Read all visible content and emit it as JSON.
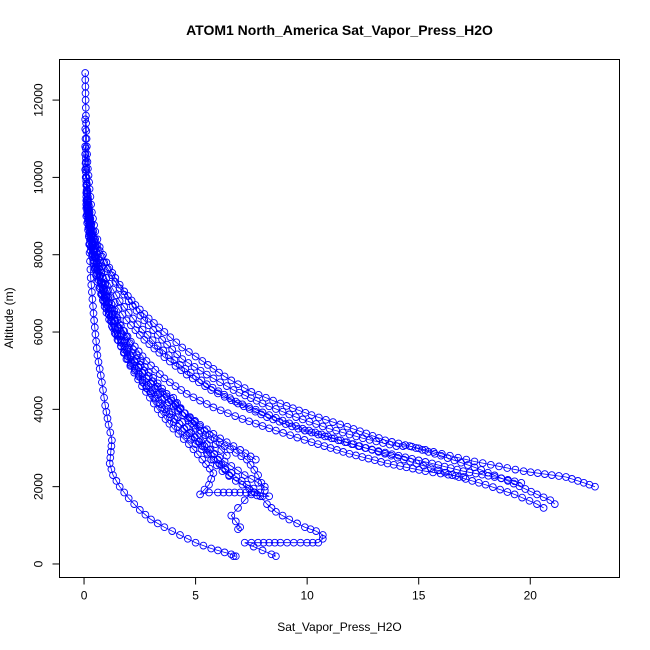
{
  "chart_data": {
    "type": "scatter",
    "title": "ATOM1 North_America Sat_Vapor_Press_H2O",
    "xlabel": "Sat_Vapor_Press_H2O",
    "ylabel": "Altitude (m)",
    "xlim": [
      -1.1,
      24
    ],
    "ylim": [
      -350,
      13050
    ],
    "xticks": [
      0,
      5,
      10,
      15,
      20
    ],
    "yticks": [
      0,
      2000,
      4000,
      6000,
      8000,
      10000,
      12000
    ],
    "color": "#0000ff",
    "marker": "open-circle",
    "connected": true,
    "grid": false,
    "legend": "none",
    "series": [
      {
        "x": [
          0.05,
          0.07,
          0.1,
          0.15,
          0.25,
          0.35,
          0.5,
          0.7,
          1.0,
          1.4,
          1.8,
          2.3,
          2.9,
          3.6,
          4.4,
          5.3,
          6.3,
          7.5,
          8.8,
          10.2,
          11.8,
          13.5,
          15.3,
          17.5,
          19.7,
          21.6,
          22.4,
          22.9
        ],
        "y": [
          12700,
          12000,
          11200,
          10400,
          9700,
          9100,
          8600,
          8200,
          7800,
          7400,
          7050,
          6700,
          6350,
          6000,
          5600,
          5250,
          4850,
          4450,
          4150,
          3850,
          3550,
          3200,
          2950,
          2650,
          2400,
          2250,
          2100,
          2000
        ]
      },
      {
        "x": [
          0.1,
          0.25,
          0.5,
          0.9,
          1.4,
          2.0,
          2.7,
          3.5,
          4.4,
          5.5,
          6.7,
          8.0,
          9.5,
          11.0,
          12.5,
          14.0,
          14.6,
          16.0,
          17.5,
          19.0,
          20.3,
          20.9,
          21.1
        ],
        "y": [
          10000,
          9000,
          8400,
          7800,
          7300,
          6800,
          6300,
          5800,
          5300,
          4900,
          4500,
          4150,
          3800,
          3500,
          3250,
          3050,
          3050,
          2800,
          2500,
          2150,
          1800,
          1650,
          1550
        ]
      },
      {
        "x": [
          0.1,
          0.3,
          0.6,
          1.0,
          1.6,
          2.4,
          3.3,
          4.3,
          5.5,
          6.8,
          8.3,
          9.8,
          11.5,
          13.2,
          14.9,
          16.5,
          18.0,
          19.3,
          20.3,
          20.6
        ],
        "y": [
          9500,
          8700,
          8000,
          7400,
          6800,
          6200,
          5650,
          5150,
          4650,
          4200,
          3850,
          3500,
          3200,
          2900,
          2600,
          2300,
          2050,
          1800,
          1550,
          1450
        ]
      },
      {
        "x": [
          0.1,
          0.3,
          0.6,
          1.0,
          1.5,
          2.1,
          2.8,
          3.5,
          4.2,
          4.8,
          5.3,
          5.7,
          6.2,
          6.8,
          7.4,
          7.9,
          8.2,
          8.6,
          9.2,
          9.9,
          10.4,
          10.7,
          10.7,
          10.5,
          10.0,
          9.4,
          8.8,
          8.3,
          7.8,
          7.2,
          7.6,
          8.0,
          8.4,
          8.6
        ],
        "y": [
          9600,
          8500,
          7600,
          6800,
          6100,
          5400,
          4800,
          4250,
          3800,
          3400,
          3050,
          2700,
          2400,
          2150,
          1950,
          1750,
          1550,
          1350,
          1150,
          950,
          850,
          750,
          650,
          550,
          550,
          550,
          550,
          550,
          550,
          550,
          450,
          350,
          250,
          200
        ]
      },
      {
        "x": [
          0.05,
          0.1,
          0.2,
          0.3,
          0.45,
          0.6,
          0.8,
          0.95,
          1.1,
          1.25,
          1.2,
          1.15,
          1.3,
          1.6,
          2.0,
          2.5,
          3.0,
          3.6,
          4.3,
          5.0,
          5.7,
          6.3,
          6.6,
          6.8,
          6.7
        ],
        "y": [
          11500,
          10000,
          8700,
          7400,
          6300,
          5400,
          4700,
          4100,
          3600,
          3200,
          2900,
          2600,
          2300,
          2000,
          1700,
          1400,
          1150,
          950,
          750,
          550,
          400,
          300,
          250,
          200,
          200
        ]
      },
      {
        "x": [
          0.05,
          0.15,
          0.4,
          0.8,
          1.3,
          1.9,
          2.6,
          3.3,
          4.0,
          4.7,
          5.3,
          5.8,
          5.6,
          5.2,
          5.6,
          6.0,
          6.5,
          7.0,
          7.5,
          7.2,
          6.9,
          6.6,
          6.8,
          7.0,
          6.9
        ],
        "y": [
          10600,
          9200,
          8000,
          7000,
          6100,
          5300,
          4600,
          4000,
          3500,
          3100,
          2700,
          2350,
          2050,
          1800,
          1850,
          1850,
          1850,
          1850,
          1850,
          1650,
          1450,
          1250,
          1100,
          950,
          900
        ]
      },
      {
        "x": [
          0.1,
          0.3,
          0.6,
          1.0,
          1.5,
          2.1,
          2.8,
          3.5,
          4.2,
          5.0,
          5.8,
          6.6,
          7.3,
          7.9,
          8.3,
          8.0,
          7.5
        ],
        "y": [
          9800,
          8600,
          7600,
          6700,
          5900,
          5200,
          4600,
          4050,
          3550,
          3100,
          2700,
          2350,
          2050,
          1850,
          1750,
          1750,
          1800
        ]
      },
      {
        "x": [
          0.1,
          0.3,
          0.7,
          1.2,
          1.9,
          2.7,
          3.6,
          4.6,
          5.7,
          6.9,
          8.2,
          9.6,
          11.1,
          12.6,
          14.1,
          15.6,
          17.0,
          18.4,
          19.6
        ],
        "y": [
          9300,
          8400,
          7600,
          6900,
          6300,
          5800,
          5350,
          4900,
          4500,
          4150,
          3800,
          3500,
          3250,
          3000,
          2800,
          2600,
          2400,
          2250,
          2100
        ]
      },
      {
        "x": [
          0.05,
          0.2,
          0.5,
          0.9,
          1.4,
          2.0,
          2.7,
          3.5,
          4.3,
          5.2,
          6.1,
          7.0,
          7.7
        ],
        "y": [
          10200,
          9000,
          8000,
          7100,
          6300,
          5600,
          5000,
          4450,
          4000,
          3600,
          3250,
          2950,
          2700
        ]
      },
      {
        "x": [
          0.1,
          0.3,
          0.6,
          1.0,
          1.5,
          2.1,
          2.8,
          3.6,
          4.4,
          5.2,
          5.9,
          6.4
        ],
        "y": [
          9000,
          8100,
          7300,
          6600,
          5950,
          5350,
          4800,
          4300,
          3850,
          3450,
          3100,
          2800
        ]
      },
      {
        "x": [
          0.1,
          0.3,
          0.6,
          1.0,
          1.5,
          2.1,
          2.8,
          3.6,
          4.6,
          5.8,
          7.1,
          8.6,
          10.2,
          11.9,
          13.6,
          15.3,
          17.0
        ],
        "y": [
          9400,
          8400,
          7600,
          6900,
          6300,
          5750,
          5250,
          4800,
          4400,
          4050,
          3750,
          3450,
          3150,
          2850,
          2600,
          2400,
          2250
        ]
      },
      {
        "x": [
          0.05,
          0.15,
          0.35,
          0.7,
          1.1,
          1.6,
          2.2,
          2.9,
          3.7,
          4.5,
          5.4,
          6.3,
          7.3,
          7.8,
          8.1
        ],
        "y": [
          10800,
          9600,
          8600,
          7700,
          6900,
          6200,
          5550,
          4950,
          4400,
          3900,
          3450,
          3050,
          2700,
          2300,
          1900
        ]
      },
      {
        "x": [
          0.1,
          0.3,
          0.6,
          1.0,
          1.5,
          2.1,
          2.8,
          3.6,
          4.5,
          5.4,
          6.3,
          7.2,
          8.1
        ],
        "y": [
          9200,
          8200,
          7300,
          6500,
          5800,
          5150,
          4550,
          4000,
          3500,
          3050,
          2650,
          2300,
          2000
        ]
      },
      {
        "x": [
          4.0,
          4.5,
          5.0,
          5.5,
          6.0,
          6.5
        ],
        "y": [
          4300,
          3900,
          3500,
          3100,
          2700,
          2300
        ]
      }
    ]
  }
}
